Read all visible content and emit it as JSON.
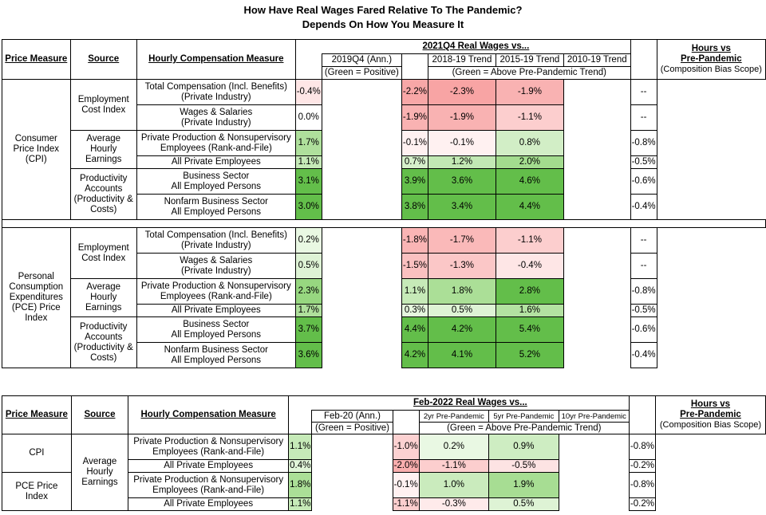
{
  "title_line1": "How Have Real Wages Fared Relative To The Pandemic?",
  "title_line2": "Depends On How You Measure It",
  "colors": {
    "pos_strong": "#63be4a",
    "pos_light": "#e6f7dc",
    "neg_strong": "#f8a8a8",
    "neg_light": "#fde8e8",
    "neutral": "#ffffff"
  },
  "chart_data": [
    {
      "type": "table",
      "headers": {
        "price_measure": "Price Measure",
        "source": "Source",
        "hourly": "Hourly Compensation Measure",
        "group": "2021Q4 Real Wages vs...",
        "col1": "2019Q4 (Ann.)",
        "col2": "2018-19 Trend",
        "col3": "2015-19 Trend",
        "col4": "2010-19 Trend",
        "note1": "(Green = Positive)",
        "note2": "(Green = Above Pre-Pandemic Trend)",
        "hours1": "Hours vs",
        "hours2": "Pre-Pandemic",
        "hours3": "(Composition Bias Scope)"
      },
      "sections": [
        {
          "price_lines": [
            "Consumer",
            "Price Index",
            "(CPI)"
          ],
          "sources": [
            {
              "lines": [
                "Employment",
                "Cost Index"
              ],
              "rows": [
                {
                  "measure": [
                    "Total Compensation (Incl. Benefits)",
                    "(Private Industry)"
                  ],
                  "values": [
                    "-0.4%",
                    "-2.2%",
                    "-2.3%",
                    "-1.9%"
                  ],
                  "nums": [
                    -0.4,
                    -2.2,
                    -2.3,
                    -1.9
                  ],
                  "hours": "--"
                },
                {
                  "measure": [
                    "Wages & Salaries",
                    "(Private Industry)"
                  ],
                  "values": [
                    "0.0%",
                    "-1.9%",
                    "-1.9%",
                    "-1.1%"
                  ],
                  "nums": [
                    0.0,
                    -1.9,
                    -1.9,
                    -1.1
                  ],
                  "hours": "--"
                }
              ]
            },
            {
              "lines": [
                "Average",
                "Hourly",
                "Earnings"
              ],
              "rows": [
                {
                  "measure": [
                    "Private Production & Nonsupervisory",
                    "Employees (Rank-and-File)"
                  ],
                  "values": [
                    "1.7%",
                    "-0.1%",
                    "-0.1%",
                    "0.8%"
                  ],
                  "nums": [
                    1.7,
                    -0.1,
                    -0.1,
                    0.8
                  ],
                  "hours": "-0.8%"
                },
                {
                  "measure": [
                    "All Private Employees"
                  ],
                  "values": [
                    "1.1%",
                    "0.7%",
                    "1.2%",
                    "2.0%"
                  ],
                  "nums": [
                    1.1,
                    0.7,
                    1.2,
                    2.0
                  ],
                  "hours": "-0.5%"
                }
              ]
            },
            {
              "lines": [
                "Productivity",
                "Accounts",
                "(Productivity &",
                "Costs)"
              ],
              "rows": [
                {
                  "measure": [
                    "Business Sector",
                    "All Employed Persons"
                  ],
                  "values": [
                    "3.1%",
                    "3.9%",
                    "3.6%",
                    "4.6%"
                  ],
                  "nums": [
                    3.1,
                    3.9,
                    3.6,
                    4.6
                  ],
                  "hours": "-0.6%"
                },
                {
                  "measure": [
                    "Nonfarm Business Sector",
                    "All Employed Persons"
                  ],
                  "values": [
                    "3.0%",
                    "3.8%",
                    "3.4%",
                    "4.4%"
                  ],
                  "nums": [
                    3.0,
                    3.8,
                    3.4,
                    4.4
                  ],
                  "hours": "-0.4%"
                }
              ]
            }
          ]
        },
        {
          "price_lines": [
            "Personal",
            "Consumption",
            "Expenditures",
            "(PCE) Price",
            "Index"
          ],
          "sources": [
            {
              "lines": [
                "Employment",
                "Cost Index"
              ],
              "rows": [
                {
                  "measure": [
                    "Total Compensation (Incl. Benefits)",
                    "(Private Industry)"
                  ],
                  "values": [
                    "0.2%",
                    "-1.8%",
                    "-1.7%",
                    "-1.1%"
                  ],
                  "nums": [
                    0.2,
                    -1.8,
                    -1.7,
                    -1.1
                  ],
                  "hours": "--"
                },
                {
                  "measure": [
                    "Wages & Salaries",
                    "(Private Industry)"
                  ],
                  "values": [
                    "0.5%",
                    "-1.5%",
                    "-1.3%",
                    "-0.4%"
                  ],
                  "nums": [
                    0.5,
                    -1.5,
                    -1.3,
                    -0.4
                  ],
                  "hours": "--"
                }
              ]
            },
            {
              "lines": [
                "Average",
                "Hourly",
                "Earnings"
              ],
              "rows": [
                {
                  "measure": [
                    "Private Production & Nonsupervisory",
                    "Employees (Rank-and-File)"
                  ],
                  "values": [
                    "2.3%",
                    "1.1%",
                    "1.8%",
                    "2.8%"
                  ],
                  "nums": [
                    2.3,
                    1.1,
                    1.8,
                    2.8
                  ],
                  "hours": "-0.8%"
                },
                {
                  "measure": [
                    "All Private Employees"
                  ],
                  "values": [
                    "1.7%",
                    "0.3%",
                    "0.5%",
                    "1.6%"
                  ],
                  "nums": [
                    1.7,
                    0.3,
                    0.5,
                    1.6
                  ],
                  "hours": "-0.5%"
                }
              ]
            },
            {
              "lines": [
                "Productivity",
                "Accounts",
                "(Productivity &",
                "Costs)"
              ],
              "rows": [
                {
                  "measure": [
                    "Business Sector",
                    "All Employed Persons"
                  ],
                  "values": [
                    "3.7%",
                    "4.4%",
                    "4.2%",
                    "5.4%"
                  ],
                  "nums": [
                    3.7,
                    4.4,
                    4.2,
                    5.4
                  ],
                  "hours": "-0.6%"
                },
                {
                  "measure": [
                    "Nonfarm Business Sector",
                    "All Employed Persons"
                  ],
                  "values": [
                    "3.6%",
                    "4.2%",
                    "4.1%",
                    "5.2%"
                  ],
                  "nums": [
                    3.6,
                    4.2,
                    4.1,
                    5.2
                  ],
                  "hours": "-0.4%"
                }
              ]
            }
          ]
        }
      ]
    },
    {
      "type": "table",
      "headers": {
        "price_measure": "Price Measure",
        "source": "Source",
        "hourly": "Hourly Compensation Measure",
        "group": "Feb-2022 Real Wages vs...",
        "col1": "Feb-20 (Ann.)",
        "col2": "2yr Pre-Pandemic",
        "col3": "5yr Pre-Pandemic",
        "col4": "10yr Pre-Pandemic",
        "note1": "(Green = Positive)",
        "note2": "(Green = Above Pre-Pandemic Trend)",
        "hours1": "Hours vs",
        "hours2": "Pre-Pandemic",
        "hours3": "(Composition Bias Scope)"
      },
      "source_lines": [
        "Average",
        "Hourly",
        "Earnings"
      ],
      "sections": [
        {
          "price_lines": [
            "CPI"
          ],
          "rows": [
            {
              "measure": [
                "Private Production & Nonsupervisory",
                "Employees (Rank-and-File)"
              ],
              "values": [
                "1.1%",
                "-1.0%",
                "0.2%",
                "0.9%"
              ],
              "nums": [
                1.1,
                -1.0,
                0.2,
                0.9
              ],
              "hours": "-0.8%"
            },
            {
              "measure": [
                "All Private Employees"
              ],
              "values": [
                "0.4%",
                "-2.0%",
                "-1.1%",
                "-0.5%"
              ],
              "nums": [
                0.4,
                -2.0,
                -1.1,
                -0.5
              ],
              "hours": "-0.2%"
            }
          ]
        },
        {
          "price_lines": [
            "PCE Price",
            "Index"
          ],
          "rows": [
            {
              "measure": [
                "Private Production & Nonsupervisory",
                "Employees (Rank-and-File)"
              ],
              "values": [
                "1.8%",
                "-0.1%",
                "1.0%",
                "1.9%"
              ],
              "nums": [
                1.8,
                -0.1,
                1.0,
                1.9
              ],
              "hours": "-0.8%"
            },
            {
              "measure": [
                "All Private Employees"
              ],
              "values": [
                "1.1%",
                "-1.1%",
                "-0.3%",
                "0.5%"
              ],
              "nums": [
                1.1,
                -1.1,
                -0.3,
                0.5
              ],
              "hours": "-0.2%"
            }
          ]
        }
      ]
    }
  ]
}
